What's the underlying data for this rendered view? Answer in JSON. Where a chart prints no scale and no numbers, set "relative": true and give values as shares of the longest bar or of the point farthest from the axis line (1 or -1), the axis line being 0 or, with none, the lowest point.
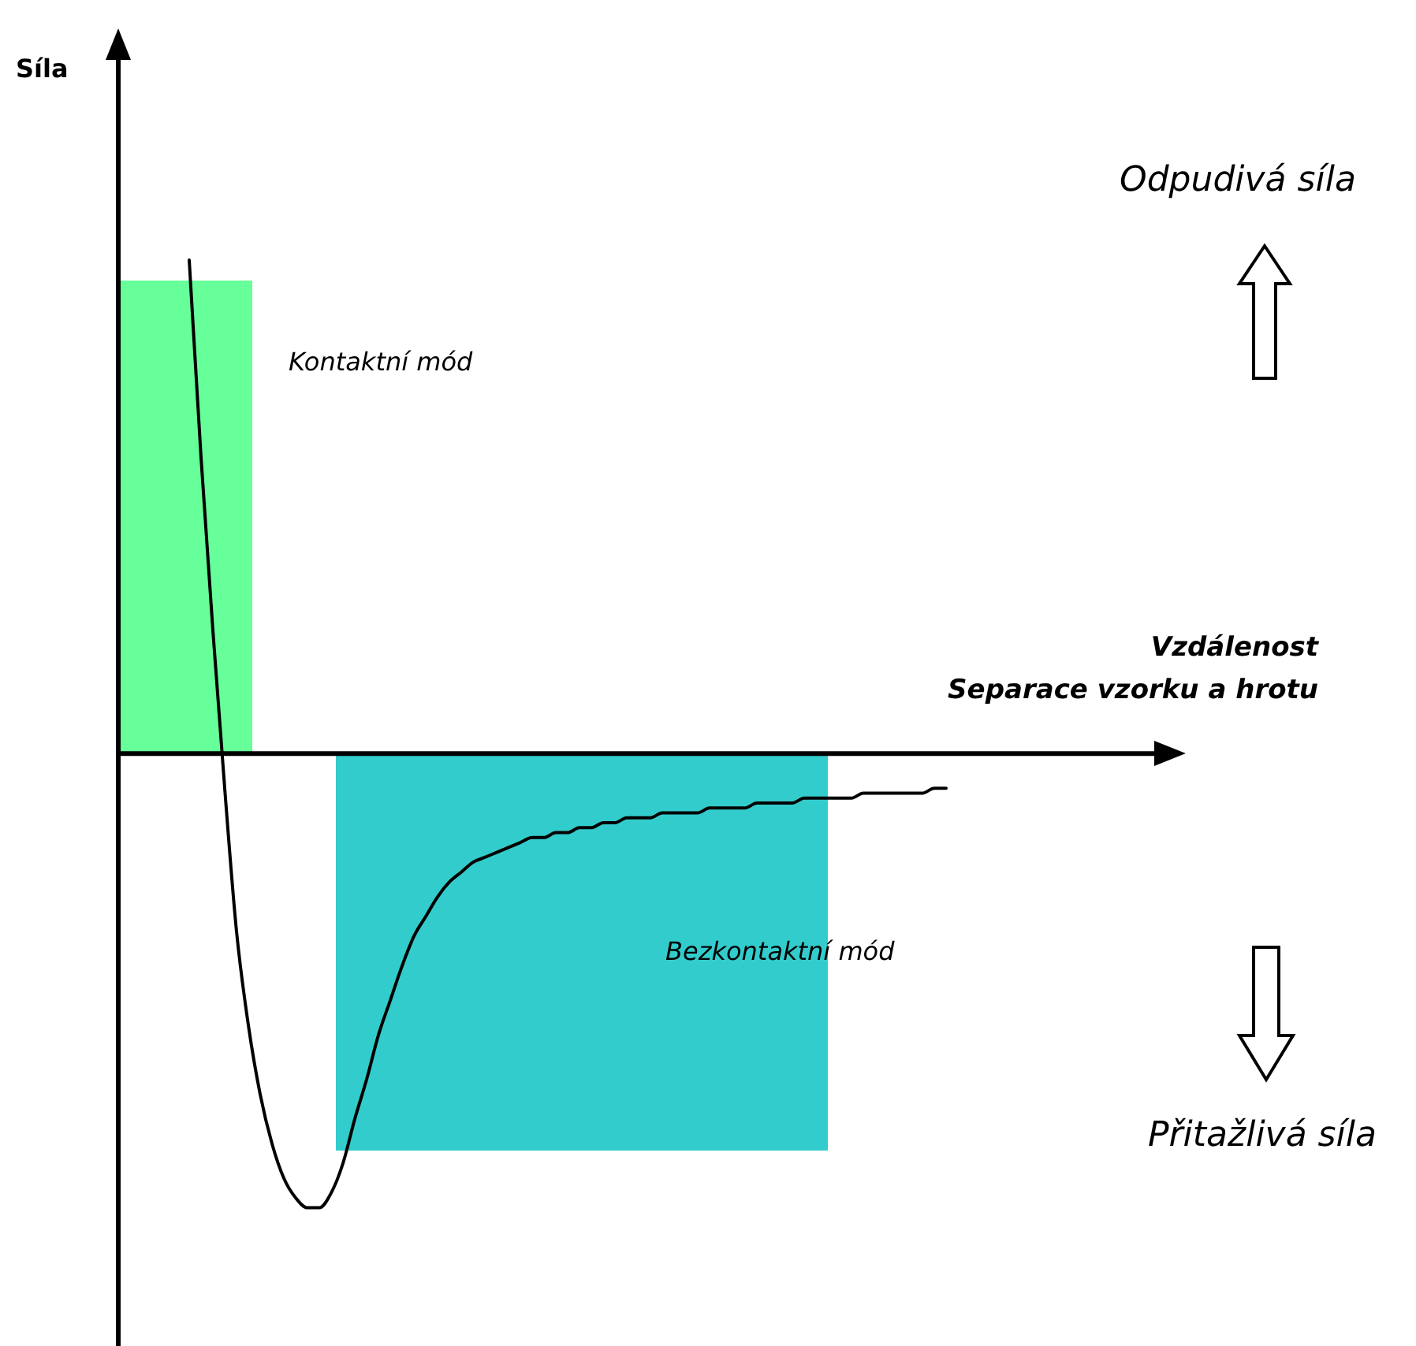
{
  "chart_data": {
    "type": "line",
    "relative": true,
    "xlabel": "Vzdálenost\nSeparace vzorku a hrotu",
    "categories": [
      null,
      null,
      null,
      null,
      null,
      null,
      null,
      null,
      null,
      null,
      null,
      null,
      null,
      null,
      null,
      null,
      null,
      null,
      null,
      null,
      null,
      null,
      null,
      null,
      null,
      null,
      null,
      null,
      null,
      null,
      null,
      null,
      null,
      null,
      null,
      null,
      null,
      null,
      null,
      null,
      null,
      null,
      null,
      null,
      null,
      null,
      null,
      null,
      null,
      null,
      null,
      null,
      null,
      null,
      null,
      null,
      null,
      null,
      null,
      null,
      null,
      null,
      null,
      null,
      null,
      null,
      null,
      null,
      null,
      null,
      null,
      null,
      null,
      null,
      null,
      null,
      null,
      null,
      null,
      null,
      null,
      null,
      null,
      null,
      null,
      null,
      null,
      null,
      null,
      null,
      null
    ],
    "series": [
      {
        "color": "#000000",
        "values": [
          null,
          null,
          null,
          null,
          null,
          null,
          1.0,
          0.6,
          0.25,
          -0.07,
          -0.36,
          -0.55,
          -0.69,
          -0.79,
          -0.86,
          -0.9,
          -0.92,
          -0.92,
          -0.89,
          -0.83,
          -0.74,
          -0.66,
          -0.57,
          -0.5,
          -0.43,
          -0.37,
          -0.33,
          -0.29,
          -0.26,
          -0.24,
          -0.22,
          -0.21,
          -0.2,
          -0.19,
          -0.18,
          -0.17,
          -0.17,
          -0.16,
          -0.16,
          -0.15,
          -0.15,
          -0.14,
          -0.14,
          -0.13,
          -0.13,
          -0.13,
          -0.12,
          -0.12,
          -0.12,
          -0.12,
          -0.11,
          -0.11,
          -0.11,
          -0.11,
          -0.1,
          -0.1,
          -0.1,
          -0.1,
          -0.09,
          -0.09,
          -0.09,
          -0.09,
          -0.09,
          -0.08,
          -0.08,
          -0.08,
          -0.08,
          -0.08,
          -0.08,
          -0.07,
          -0.07,
          null,
          null,
          null,
          null,
          null,
          null,
          null,
          null,
          null,
          null,
          null,
          null,
          null,
          null,
          null,
          null,
          null,
          null,
          null,
          null
        ]
      }
    ],
    "marker": "none",
    "line_style": "solid",
    "annotations": [
      "Kontaktní mód",
      "Bezkontaktní mód",
      "Odpudivá síla",
      "Přitažlivá síla",
      "Síla"
    ]
  }
}
